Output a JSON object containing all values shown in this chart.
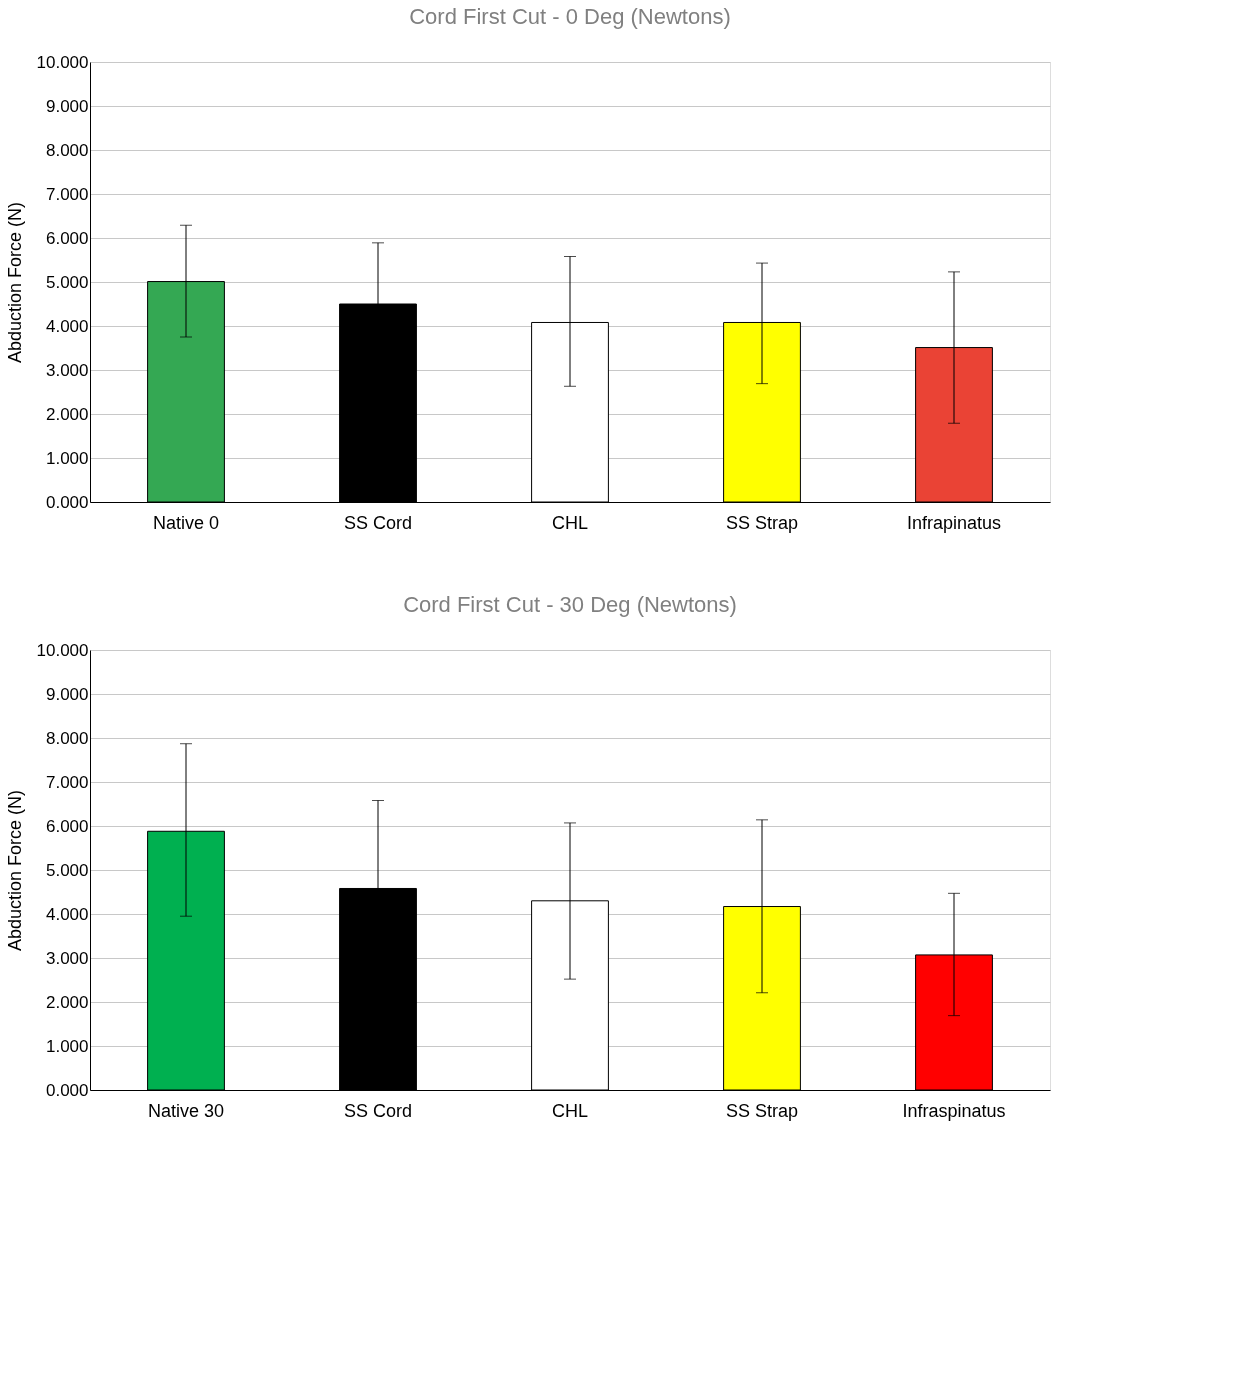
{
  "chart_data": [
    {
      "type": "bar",
      "title": "Cord First Cut - 0 Deg (Newtons)",
      "ylabel": "Abduction Force (N)",
      "categories": [
        "Native 0",
        "SS Cord",
        "CHL",
        "SS Strap",
        "Infrapinatus"
      ],
      "values": [
        5.01,
        4.5,
        4.08,
        4.08,
        3.51
      ],
      "errors": [
        [
          3.75,
          6.29
        ],
        1.39,
        [
          2.63,
          5.58
        ],
        [
          2.69,
          5.43
        ],
        [
          1.79,
          5.23
        ]
      ],
      "colors": [
        "#34a853",
        "#000000",
        "#ffffff",
        "#ffff00",
        "#ea4335"
      ],
      "ylim": [
        0,
        10
      ],
      "yticks": [
        {
          "value": 0,
          "label": "0.000"
        },
        {
          "value": 1,
          "label": "1.000"
        },
        {
          "value": 2,
          "label": "2.000"
        },
        {
          "value": 3,
          "label": "3.000"
        },
        {
          "value": 4,
          "label": "4.000"
        },
        {
          "value": 5,
          "label": "5.000"
        },
        {
          "value": 6,
          "label": "6.000"
        },
        {
          "value": 7,
          "label": "7.000"
        },
        {
          "value": 8,
          "label": "8.000"
        },
        {
          "value": 9,
          "label": "9.000"
        },
        {
          "value": 10,
          "label": "10.000"
        }
      ],
      "grid": "y"
    },
    {
      "type": "bar",
      "title": "Cord First Cut - 30 Deg (Newtons)",
      "ylabel": "Abduction Force (N)",
      "categories": [
        "Native 30",
        "SS Cord",
        "CHL",
        "SS Strap",
        "Infraspinatus"
      ],
      "values": [
        5.88,
        4.58,
        4.3,
        4.17,
        3.07
      ],
      "errors": [
        [
          3.95,
          7.87
        ],
        2.0,
        [
          2.52,
          6.07
        ],
        [
          2.21,
          6.14
        ],
        [
          1.69,
          4.47
        ]
      ],
      "colors": [
        "#00b050",
        "#000000",
        "#ffffff",
        "#ffff00",
        "#ff0000"
      ],
      "ylim": [
        0,
        10
      ],
      "yticks": [
        {
          "value": 0,
          "label": "0.000"
        },
        {
          "value": 1,
          "label": "1.000"
        },
        {
          "value": 2,
          "label": "2.000"
        },
        {
          "value": 3,
          "label": "3.000"
        },
        {
          "value": 4,
          "label": "4.000"
        },
        {
          "value": 5,
          "label": "5.000"
        },
        {
          "value": 6,
          "label": "6.000"
        },
        {
          "value": 7,
          "label": "7.000"
        },
        {
          "value": 8,
          "label": "8.000"
        },
        {
          "value": 9,
          "label": "9.000"
        },
        {
          "value": 10,
          "label": "10.000"
        }
      ],
      "grid": "y"
    }
  ]
}
